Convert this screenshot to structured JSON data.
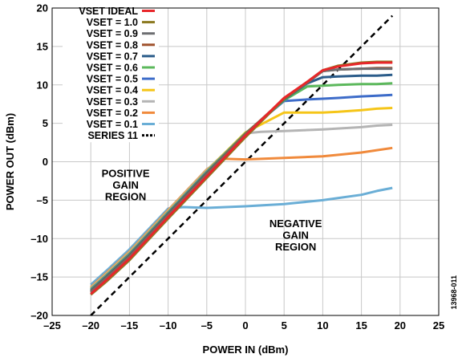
{
  "chart_data": {
    "type": "line",
    "xlabel": "POWER IN (dBm)",
    "ylabel": "POWER OUT (dBm)",
    "xlim": [
      -25,
      25
    ],
    "ylim": [
      -20,
      20
    ],
    "xticks": [
      -25,
      -20,
      -15,
      -10,
      -5,
      0,
      5,
      10,
      15,
      20,
      25
    ],
    "yticks": [
      -20,
      -15,
      -10,
      -5,
      0,
      5,
      10,
      15,
      20
    ],
    "xtick_labels": [
      "–25",
      "–20",
      "–15",
      "–10",
      "–5",
      "0",
      "5",
      "10",
      "15",
      "20",
      "25"
    ],
    "ytick_labels": [
      "–20",
      "–15",
      "–10",
      "–5",
      "0",
      "5",
      "10",
      "15",
      "20"
    ],
    "grid": true,
    "legend_position": "top-left",
    "annotations": [
      {
        "lines": [
          "POSITIVE",
          "GAIN",
          "REGION"
        ],
        "x": -15.5,
        "y": -2.0
      },
      {
        "lines": [
          "NEGATIVE",
          "GAIN",
          "REGION"
        ],
        "x": 6.5,
        "y": -8.5
      }
    ],
    "side_label": "13968-011",
    "series": [
      {
        "name": "VSET IDEAL",
        "color": "#e8262a",
        "x": [
          -20,
          -18,
          -15,
          -10,
          -5,
          0,
          5,
          8,
          10,
          12,
          15,
          17,
          19
        ],
        "y": [
          -17.2,
          -15.4,
          -12.6,
          -7.2,
          -1.9,
          3.4,
          8.3,
          10.4,
          11.9,
          12.4,
          12.8,
          12.9,
          12.9
        ]
      },
      {
        "name": "VSET = 1.0",
        "color": "#8c7a22",
        "x": [
          -20,
          -18,
          -15,
          -10,
          -5,
          0,
          5,
          8,
          10,
          12,
          15,
          17,
          19
        ],
        "y": [
          -17.3,
          -15.6,
          -12.8,
          -7.4,
          -2.1,
          3.2,
          8.2,
          10.4,
          11.9,
          12.5,
          12.9,
          13.0,
          13.0
        ]
      },
      {
        "name": "VSET = 0.9",
        "color": "#6d6e71",
        "x": [
          -20,
          -18,
          -15,
          -10,
          -5,
          0,
          5,
          8,
          10,
          12,
          15,
          17,
          19
        ],
        "y": [
          -17.0,
          -15.2,
          -12.4,
          -7.0,
          -1.7,
          3.5,
          8.2,
          10.3,
          11.8,
          12.0,
          12.1,
          12.1,
          12.1
        ]
      },
      {
        "name": "VSET = 0.8",
        "color": "#a0522d",
        "x": [
          -20,
          -18,
          -15,
          -10,
          -5,
          0,
          5,
          8,
          10,
          12,
          15,
          17,
          19
        ],
        "y": [
          -16.9,
          -15.1,
          -12.3,
          -6.9,
          -1.6,
          3.6,
          8.2,
          10.3,
          11.8,
          12.0,
          12.1,
          12.2,
          12.2
        ]
      },
      {
        "name": "VSET = 0.7",
        "color": "#2b5c8a",
        "x": [
          -20,
          -18,
          -15,
          -10,
          -5,
          0,
          5,
          8,
          10,
          12,
          15,
          17,
          19
        ],
        "y": [
          -16.8,
          -15.0,
          -12.2,
          -6.8,
          -1.5,
          3.6,
          8.1,
          10.2,
          11.0,
          11.1,
          11.2,
          11.2,
          11.3
        ]
      },
      {
        "name": "VSET = 0.6",
        "color": "#5cb85c",
        "x": [
          -20,
          -18,
          -15,
          -10,
          -5,
          0,
          5,
          8,
          10,
          12,
          15,
          17,
          19
        ],
        "y": [
          -16.7,
          -14.9,
          -12.1,
          -6.7,
          -1.4,
          3.7,
          8.0,
          9.8,
          9.9,
          10.0,
          10.1,
          10.1,
          10.2
        ]
      },
      {
        "name": "VSET = 0.5",
        "color": "#3d6cc9",
        "x": [
          -20,
          -18,
          -15,
          -10,
          -5,
          0,
          5,
          8,
          10,
          12,
          15,
          17,
          19
        ],
        "y": [
          -16.6,
          -14.8,
          -12.0,
          -6.6,
          -1.3,
          3.7,
          7.9,
          8.1,
          8.2,
          8.3,
          8.5,
          8.6,
          8.7
        ]
      },
      {
        "name": "VSET = 0.4",
        "color": "#f5c518",
        "x": [
          -20,
          -18,
          -15,
          -10,
          -5,
          0,
          5,
          8,
          10,
          12,
          15,
          17,
          19
        ],
        "y": [
          -16.5,
          -14.7,
          -11.9,
          -6.5,
          -1.2,
          3.8,
          6.4,
          6.4,
          6.4,
          6.5,
          6.7,
          6.9,
          7.0
        ]
      },
      {
        "name": "VSET = 0.3",
        "color": "#b4b4b4",
        "x": [
          -20,
          -18,
          -15,
          -10,
          -5,
          0,
          2,
          5,
          10,
          15,
          17,
          19
        ],
        "y": [
          -16.4,
          -14.6,
          -11.8,
          -6.4,
          -1.1,
          3.7,
          3.9,
          4.0,
          4.2,
          4.5,
          4.7,
          4.8
        ]
      },
      {
        "name": "VSET = 0.2",
        "color": "#f08a3c",
        "x": [
          -20,
          -18,
          -15,
          -10,
          -5,
          -3,
          0,
          5,
          10,
          12,
          15,
          17,
          19
        ],
        "y": [
          -16.3,
          -14.5,
          -11.7,
          -6.3,
          -1.0,
          0.4,
          0.3,
          0.5,
          0.7,
          0.9,
          1.2,
          1.5,
          1.8
        ]
      },
      {
        "name": "VSET = 0.1",
        "color": "#6aaed6",
        "x": [
          -20,
          -18,
          -15,
          -10,
          -8,
          -5,
          0,
          5,
          10,
          15,
          17,
          19
        ],
        "y": [
          -16.0,
          -14.2,
          -11.4,
          -6.1,
          -5.9,
          -6.0,
          -5.8,
          -5.5,
          -5.0,
          -4.3,
          -3.8,
          -3.4
        ]
      },
      {
        "name": "SERIES 11",
        "color": "#000000",
        "dashed": true,
        "x": [
          -20,
          19
        ],
        "y": [
          -20,
          19
        ]
      }
    ]
  }
}
